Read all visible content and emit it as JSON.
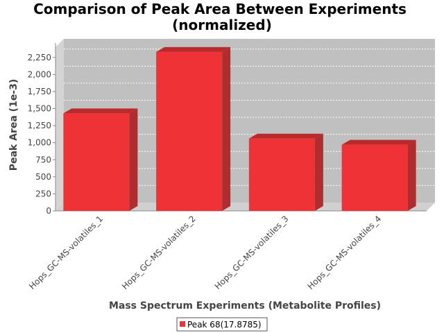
{
  "chart_data": {
    "type": "bar",
    "title": "Comparison of Peak Area Between Experiments",
    "subtitle": "(normalized)",
    "xlabel": "Mass Spectrum Experiments (Metabolite Profiles)",
    "ylabel": "Peak Area (1e-3)",
    "categories": [
      "Hops_GC-MS-volatiles_1",
      "Hops_GC-MS-volatiles_2",
      "Hops_GC-MS-volatiles_3",
      "Hops_GC-MS-volatiles_4"
    ],
    "series": [
      {
        "name": "Peak 68(17.8785)",
        "values": [
          1430,
          2330,
          1060,
          970
        ]
      }
    ],
    "ylim": [
      0,
      2400
    ],
    "yticks": [
      0,
      250,
      500,
      750,
      1000,
      1250,
      1500,
      1750,
      2000,
      2250
    ],
    "ytick_labels": [
      "0",
      "250",
      "500",
      "750",
      "1,000",
      "1,250",
      "1,500",
      "1,750",
      "2,000",
      "2,250"
    ],
    "grid": true,
    "legend_position": "bottom",
    "colors": {
      "bar": "#ef3235",
      "bar_top": "#b82a2c",
      "bar_side": "#b02c2e",
      "plot_bg": "#c0c0c0",
      "wall": "#d4d4d4",
      "floor": "#d0d0d0"
    }
  }
}
